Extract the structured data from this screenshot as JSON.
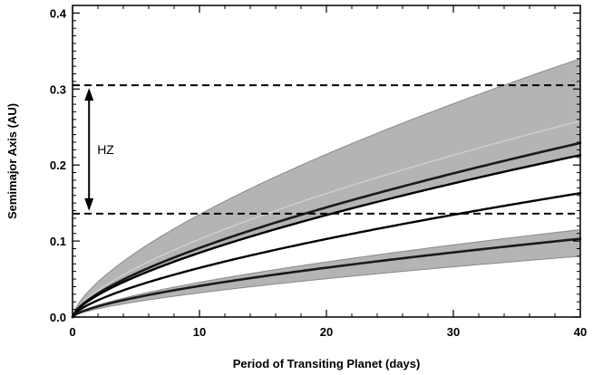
{
  "chart_data": {
    "type": "line",
    "title": "",
    "xlabel": "Period of Transiting Planet (days)",
    "ylabel": "Semimajor Axis (AU)",
    "xlim": [
      0,
      40
    ],
    "ylim": [
      0,
      0.41
    ],
    "xticks": [
      0,
      10,
      20,
      30,
      40
    ],
    "xtick_labels": [
      "0",
      "10",
      "20",
      "30",
      "40"
    ],
    "yticks": [
      0.0,
      0.1,
      0.2,
      0.3,
      0.4
    ],
    "ytick_labels": [
      "0.0",
      "0.1",
      "0.2",
      "0.3",
      "0.4"
    ],
    "law": "a = k * P^(2/3)",
    "bands": [
      {
        "name": "upper-band",
        "a_at_40_days_lower": 0.213,
        "a_at_40_days_upper": 0.34,
        "color": "#b4b4b4"
      },
      {
        "name": "lower-band",
        "a_at_40_days_lower": 0.08,
        "a_at_40_days_upper": 0.115,
        "color": "#b4b4b4"
      }
    ],
    "series": [
      {
        "name": "upper-band-center",
        "a_at_40_days": 0.258,
        "color": "#d2d2d2",
        "width": 1.3
      },
      {
        "name": "curve-1",
        "a_at_40_days": 0.229,
        "color": "#1a1a1a",
        "width": 2.6
      },
      {
        "name": "curve-2",
        "a_at_40_days": 0.213,
        "color": "#000000",
        "width": 2.4
      },
      {
        "name": "curve-3",
        "a_at_40_days": 0.163,
        "color": "#000000",
        "width": 2.4
      },
      {
        "name": "curve-4",
        "a_at_40_days": 0.103,
        "color": "#1a1a1a",
        "width": 2.6
      }
    ],
    "hlines": [
      {
        "name": "hz-outer-line",
        "y": 0.305
      },
      {
        "name": "hz-inner-line",
        "y": 0.136
      }
    ],
    "annotations": [
      {
        "name": "hz-label",
        "text": "HZ",
        "y_span": [
          0.136,
          0.305
        ]
      }
    ]
  }
}
